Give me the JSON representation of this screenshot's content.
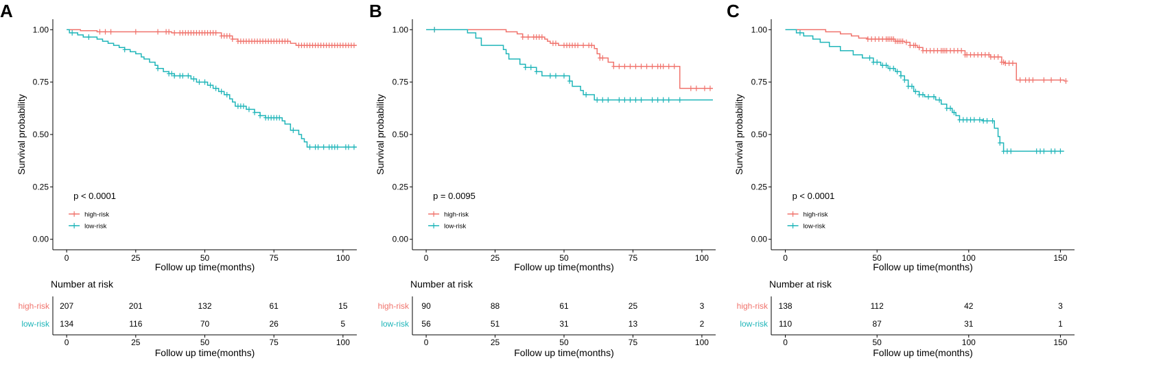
{
  "colors": {
    "high_risk": "#F0736C",
    "low_risk": "#1FB5B9",
    "axis": "#000000"
  },
  "chart_data": [
    {
      "panel": "A",
      "type": "line",
      "subtype": "kaplan-meier",
      "xlabel": "Follow up time(months)",
      "ylabel": "Survival probability",
      "xlim": [
        -5,
        105
      ],
      "xticks": [
        0,
        25,
        50,
        75,
        100
      ],
      "xtick_labels": [
        "0",
        "25",
        "50",
        "75",
        "100"
      ],
      "ylim": [
        -0.05,
        1.05
      ],
      "yticks": [
        0,
        0.25,
        0.5,
        0.75,
        1
      ],
      "ytick_labels": [
        "0.00",
        "0.25",
        "0.50",
        "0.75",
        "1.00"
      ],
      "pvalue": "p < 0.0001",
      "series": [
        {
          "name": "high-risk",
          "color_key": "high_risk",
          "steps": [
            [
              0,
              1.0
            ],
            [
              5,
              0.995
            ],
            [
              11,
              0.99
            ],
            [
              38,
              0.985
            ],
            [
              56,
              0.97
            ],
            [
              60,
              0.955
            ],
            [
              62,
              0.945
            ],
            [
              81,
              0.935
            ],
            [
              83,
              0.925
            ],
            [
              105,
              0.925
            ]
          ],
          "censor": [
            12,
            14,
            16,
            25,
            33,
            36,
            37,
            39,
            41,
            42,
            43,
            44,
            45,
            46,
            47,
            48,
            49,
            50,
            51,
            52,
            53,
            54,
            56,
            57,
            58,
            59,
            60,
            62,
            63,
            64,
            65,
            66,
            67,
            68,
            69,
            70,
            71,
            72,
            73,
            74,
            75,
            76,
            77,
            78,
            79,
            80,
            84,
            85,
            86,
            87,
            88,
            89,
            90,
            91,
            92,
            93,
            94,
            95,
            96,
            97,
            98,
            99,
            100,
            101,
            102,
            103,
            104
          ]
        },
        {
          "name": "low-risk",
          "color_key": "low_risk",
          "steps": [
            [
              0,
              1.0
            ],
            [
              1,
              0.985
            ],
            [
              4,
              0.975
            ],
            [
              6,
              0.965
            ],
            [
              11,
              0.955
            ],
            [
              13,
              0.945
            ],
            [
              15,
              0.935
            ],
            [
              17,
              0.925
            ],
            [
              19,
              0.915
            ],
            [
              21,
              0.905
            ],
            [
              23,
              0.895
            ],
            [
              25,
              0.885
            ],
            [
              27,
              0.87
            ],
            [
              28,
              0.86
            ],
            [
              30,
              0.845
            ],
            [
              32,
              0.83
            ],
            [
              33,
              0.815
            ],
            [
              35,
              0.8
            ],
            [
              37,
              0.79
            ],
            [
              39,
              0.78
            ],
            [
              45,
              0.765
            ],
            [
              47,
              0.75
            ],
            [
              51,
              0.735
            ],
            [
              53,
              0.72
            ],
            [
              55,
              0.705
            ],
            [
              57,
              0.69
            ],
            [
              59,
              0.67
            ],
            [
              60,
              0.655
            ],
            [
              61,
              0.635
            ],
            [
              65,
              0.62
            ],
            [
              68,
              0.605
            ],
            [
              70,
              0.59
            ],
            [
              72,
              0.58
            ],
            [
              78,
              0.565
            ],
            [
              79,
              0.55
            ],
            [
              81,
              0.52
            ],
            [
              84,
              0.5
            ],
            [
              85,
              0.48
            ],
            [
              86,
              0.465
            ],
            [
              87,
              0.44
            ],
            [
              105,
              0.44
            ]
          ],
          "censor": [
            2,
            8,
            21,
            33,
            37,
            38,
            39,
            41,
            42,
            44,
            46,
            48,
            50,
            52,
            54,
            56,
            58,
            62,
            63,
            64,
            66,
            68,
            70,
            72,
            73,
            74,
            75,
            76,
            77,
            82,
            88,
            90,
            91,
            93,
            95,
            96,
            97,
            98,
            101,
            102,
            104
          ]
        }
      ],
      "risk_table": {
        "title": "Number at risk",
        "xlabel": "Follow up time(months)",
        "times": [
          0,
          25,
          50,
          75,
          100
        ],
        "time_labels": [
          "0",
          "25",
          "50",
          "75",
          "100"
        ],
        "rows": [
          {
            "name": "high-risk",
            "color_key": "high_risk",
            "counts": [
              "207",
              "201",
              "132",
              "61",
              "15"
            ]
          },
          {
            "name": "low-risk",
            "color_key": "low_risk",
            "counts": [
              "134",
              "116",
              "70",
              "26",
              "5"
            ]
          }
        ]
      }
    },
    {
      "panel": "B",
      "type": "line",
      "subtype": "kaplan-meier",
      "xlabel": "Follow up time(months)",
      "ylabel": "Survival probability",
      "xlim": [
        -5,
        105
      ],
      "xticks": [
        0,
        25,
        50,
        75,
        100
      ],
      "xtick_labels": [
        "0",
        "25",
        "50",
        "75",
        "100"
      ],
      "ylim": [
        -0.05,
        1.05
      ],
      "yticks": [
        0,
        0.25,
        0.5,
        0.75,
        1
      ],
      "ytick_labels": [
        "0.00",
        "0.25",
        "0.50",
        "0.75",
        "1.00"
      ],
      "pvalue": "p = 0.0095",
      "series": [
        {
          "name": "high-risk",
          "color_key": "high_risk",
          "steps": [
            [
              0,
              1.0
            ],
            [
              29,
              0.99
            ],
            [
              33,
              0.98
            ],
            [
              35,
              0.965
            ],
            [
              43,
              0.955
            ],
            [
              44,
              0.945
            ],
            [
              45,
              0.935
            ],
            [
              48,
              0.925
            ],
            [
              61,
              0.91
            ],
            [
              62,
              0.885
            ],
            [
              63,
              0.865
            ],
            [
              66,
              0.845
            ],
            [
              68,
              0.825
            ],
            [
              92,
              0.72
            ],
            [
              104,
              0.72
            ]
          ],
          "censor": [
            3,
            35,
            37,
            39,
            40,
            41,
            42,
            46,
            47,
            50,
            51,
            52,
            53,
            54,
            55,
            57,
            59,
            60,
            63,
            64,
            68,
            70,
            72,
            74,
            76,
            78,
            80,
            82,
            84,
            85,
            86,
            88,
            90,
            96,
            98,
            101,
            103
          ]
        },
        {
          "name": "low-risk",
          "color_key": "low_risk",
          "steps": [
            [
              0,
              1.0
            ],
            [
              15,
              0.985
            ],
            [
              18,
              0.96
            ],
            [
              20,
              0.925
            ],
            [
              28,
              0.905
            ],
            [
              29,
              0.885
            ],
            [
              30,
              0.86
            ],
            [
              34,
              0.835
            ],
            [
              36,
              0.82
            ],
            [
              40,
              0.8
            ],
            [
              42,
              0.78
            ],
            [
              52,
              0.755
            ],
            [
              53,
              0.73
            ],
            [
              56,
              0.71
            ],
            [
              57,
              0.69
            ],
            [
              61,
              0.665
            ],
            [
              104,
              0.665
            ]
          ],
          "censor": [
            3,
            36,
            38,
            40,
            45,
            47,
            50,
            52,
            58,
            62,
            64,
            66,
            70,
            72,
            74,
            76,
            78,
            82,
            84,
            86,
            88,
            92
          ]
        }
      ],
      "risk_table": {
        "title": "Number at risk",
        "xlabel": "Follow up time(months)",
        "times": [
          0,
          25,
          50,
          75,
          100
        ],
        "time_labels": [
          "0",
          "25",
          "50",
          "75",
          "100"
        ],
        "rows": [
          {
            "name": "high-risk",
            "color_key": "high_risk",
            "counts": [
              "90",
              "88",
              "61",
              "25",
              "3"
            ]
          },
          {
            "name": "low-risk",
            "color_key": "low_risk",
            "counts": [
              "56",
              "51",
              "31",
              "13",
              "2"
            ]
          }
        ]
      }
    },
    {
      "panel": "C",
      "type": "line",
      "subtype": "kaplan-meier",
      "xlabel": "Follow up time(months)",
      "ylabel": "Survival probability",
      "xlim": [
        -7.7,
        157.7
      ],
      "xticks": [
        0,
        50,
        100,
        150
      ],
      "xtick_labels": [
        "0",
        "50",
        "100",
        "150"
      ],
      "ylim": [
        -0.05,
        1.05
      ],
      "yticks": [
        0,
        0.25,
        0.5,
        0.75,
        1
      ],
      "ytick_labels": [
        "0.00",
        "0.25",
        "0.50",
        "0.75",
        "1.00"
      ],
      "pvalue": "p < 0.0001",
      "series": [
        {
          "name": "high-risk",
          "color_key": "high_risk",
          "steps": [
            [
              0,
              1.0
            ],
            [
              22,
              0.99
            ],
            [
              30,
              0.98
            ],
            [
              36,
              0.97
            ],
            [
              40,
              0.96
            ],
            [
              45,
              0.955
            ],
            [
              60,
              0.945
            ],
            [
              65,
              0.94
            ],
            [
              68,
              0.925
            ],
            [
              72,
              0.915
            ],
            [
              75,
              0.9
            ],
            [
              98,
              0.88
            ],
            [
              112,
              0.87
            ],
            [
              118,
              0.845
            ],
            [
              120,
              0.84
            ],
            [
              126,
              0.76
            ],
            [
              152,
              0.755
            ]
          ],
          "censor": [
            45,
            47,
            49,
            51,
            53,
            55,
            56,
            57,
            58,
            59,
            60,
            61,
            62,
            63,
            64,
            66,
            68,
            70,
            71,
            73,
            75,
            77,
            79,
            81,
            83,
            85,
            86,
            87,
            88,
            90,
            92,
            94,
            96,
            98,
            99,
            101,
            103,
            105,
            107,
            109,
            111,
            112,
            114,
            116,
            118,
            119,
            120,
            122,
            124,
            128,
            131,
            133,
            135,
            141,
            145,
            150,
            153
          ]
        },
        {
          "name": "low-risk",
          "color_key": "low_risk",
          "steps": [
            [
              0,
              1.0
            ],
            [
              6,
              0.985
            ],
            [
              10,
              0.97
            ],
            [
              15,
              0.955
            ],
            [
              19,
              0.94
            ],
            [
              24,
              0.92
            ],
            [
              30,
              0.9
            ],
            [
              37,
              0.88
            ],
            [
              42,
              0.865
            ],
            [
              48,
              0.845
            ],
            [
              52,
              0.83
            ],
            [
              56,
              0.815
            ],
            [
              60,
              0.8
            ],
            [
              63,
              0.78
            ],
            [
              65,
              0.76
            ],
            [
              67,
              0.73
            ],
            [
              70,
              0.705
            ],
            [
              73,
              0.69
            ],
            [
              76,
              0.68
            ],
            [
              82,
              0.665
            ],
            [
              85,
              0.645
            ],
            [
              88,
              0.625
            ],
            [
              91,
              0.605
            ],
            [
              93,
              0.59
            ],
            [
              95,
              0.57
            ],
            [
              108,
              0.565
            ],
            [
              114,
              0.53
            ],
            [
              116,
              0.49
            ],
            [
              117,
              0.46
            ],
            [
              119,
              0.42
            ],
            [
              152,
              0.42
            ]
          ],
          "censor": [
            8,
            46,
            48,
            50,
            53,
            55,
            57,
            59,
            61,
            63,
            65,
            67,
            69,
            71,
            73,
            75,
            78,
            81,
            84,
            88,
            90,
            92,
            95,
            97,
            99,
            101,
            103,
            106,
            108,
            110,
            113,
            117,
            119,
            121,
            123,
            137,
            139,
            141,
            145,
            147,
            150
          ]
        }
      ],
      "risk_table": {
        "title": "Number at risk",
        "xlabel": "Follow up time(months)",
        "times": [
          0,
          50,
          100,
          150
        ],
        "time_labels": [
          "0",
          "50",
          "100",
          "150"
        ],
        "rows": [
          {
            "name": "high-risk",
            "color_key": "high_risk",
            "counts": [
              "138",
              "112",
              "42",
              "3"
            ]
          },
          {
            "name": "low-risk",
            "color_key": "low_risk",
            "counts": [
              "110",
              "87",
              "31",
              "1"
            ]
          }
        ]
      }
    }
  ]
}
